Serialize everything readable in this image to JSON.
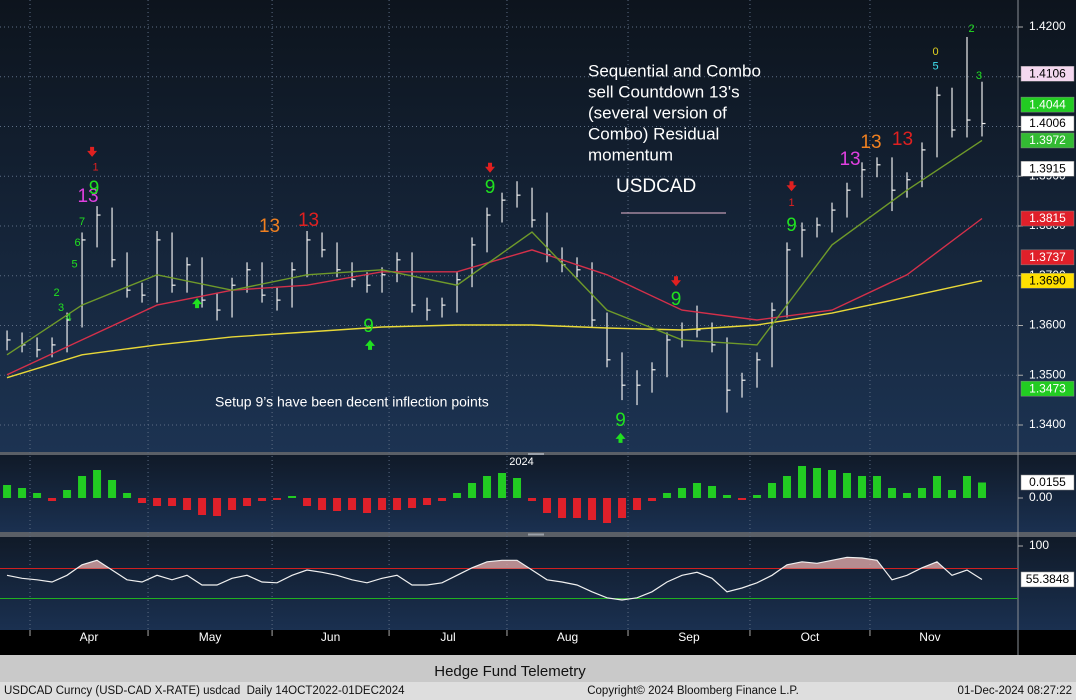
{
  "chart_data": [
    {
      "type": "ohlc",
      "high": [
        1.359,
        1.3586,
        1.3576,
        1.3576,
        1.3626,
        1.3787,
        1.384,
        1.3837,
        1.3747,
        1.3686,
        1.379,
        1.3787,
        1.3737,
        1.3737,
        1.3666,
        1.3696,
        1.3727,
        1.3727,
        1.3676,
        1.3727,
        1.379,
        1.3787,
        1.3767,
        1.3727,
        1.3707,
        1.3717,
        1.3747,
        1.3747,
        1.3656,
        1.3656,
        1.3707,
        1.3777,
        1.3837,
        1.3867,
        1.389,
        1.3877,
        1.3827,
        1.3757,
        1.3737,
        1.3727,
        1.3626,
        1.3546,
        1.351,
        1.3526,
        1.3586,
        1.3606,
        1.364,
        1.3606,
        1.3576,
        1.3505,
        1.3546,
        1.3646,
        1.3767,
        1.3807,
        1.3817,
        1.3847,
        1.3887,
        1.3928,
        1.3938,
        1.3938,
        1.3908,
        1.3968,
        1.408,
        1.4078,
        1.418,
        1.409
      ],
      "low": [
        1.355,
        1.3546,
        1.3536,
        1.3536,
        1.3546,
        1.3596,
        1.3757,
        1.3717,
        1.3656,
        1.3646,
        1.3646,
        1.3666,
        1.3666,
        1.3636,
        1.361,
        1.3616,
        1.3666,
        1.3646,
        1.363,
        1.3636,
        1.3697,
        1.3737,
        1.3697,
        1.3677,
        1.3666,
        1.3666,
        1.3687,
        1.3626,
        1.361,
        1.3616,
        1.3626,
        1.3677,
        1.3747,
        1.3807,
        1.3837,
        1.3797,
        1.3727,
        1.3707,
        1.3697,
        1.3596,
        1.3516,
        1.345,
        1.344,
        1.3465,
        1.3496,
        1.3556,
        1.3576,
        1.3546,
        1.3425,
        1.3455,
        1.3475,
        1.3516,
        1.3616,
        1.3737,
        1.3777,
        1.3787,
        1.3817,
        1.3857,
        1.3898,
        1.383,
        1.3857,
        1.3878,
        1.3938,
        1.3978,
        1.3978,
        1.398
      ],
      "close": [
        1.3571,
        1.3561,
        1.3551,
        1.3561,
        1.3611,
        1.3772,
        1.3822,
        1.3732,
        1.3671,
        1.3661,
        1.3772,
        1.3681,
        1.3722,
        1.3651,
        1.3631,
        1.3681,
        1.3712,
        1.3661,
        1.3651,
        1.3712,
        1.3772,
        1.3752,
        1.3712,
        1.3692,
        1.3681,
        1.3702,
        1.3732,
        1.3641,
        1.3631,
        1.3641,
        1.3692,
        1.3762,
        1.3822,
        1.3852,
        1.3862,
        1.3812,
        1.3742,
        1.3722,
        1.3712,
        1.3611,
        1.3531,
        1.348,
        1.348,
        1.3511,
        1.3571,
        1.3591,
        1.3591,
        1.3561,
        1.347,
        1.349,
        1.3531,
        1.3631,
        1.3752,
        1.3792,
        1.3802,
        1.3832,
        1.3872,
        1.3913,
        1.3923,
        1.3872,
        1.3893,
        1.3953,
        1.4063,
        1.3993,
        1.4013,
        1.4006
      ],
      "color": "#eeeeee",
      "xlim": [
        -0.47,
        67.4
      ],
      "xticks": [
        {
          "value": 1.53,
          "label": "Apr"
        },
        {
          "value": 9.4,
          "label": "May"
        },
        {
          "value": 17.67,
          "label": "Jun"
        },
        {
          "value": 25.47,
          "label": "Jul"
        },
        {
          "value": 33.33,
          "label": "Aug"
        },
        {
          "value": 41.4,
          "label": "Sep"
        },
        {
          "value": 49.53,
          "label": "Oct"
        },
        {
          "value": 57.53,
          "label": "Nov"
        }
      ],
      "year_tick": {
        "value": 34.3,
        "label": "2024"
      },
      "ylim": [
        1.33457,
        1.42543
      ],
      "yticks": [
        {
          "value": 1.34,
          "label": "1.3400"
        },
        {
          "value": 1.35,
          "label": "1.3500"
        },
        {
          "value": 1.36,
          "label": "1.3600"
        },
        {
          "value": 1.37,
          "label": "1.3700"
        },
        {
          "value": 1.38,
          "label": "1.3800"
        },
        {
          "value": 1.39,
          "label": "1.3900"
        },
        {
          "value": 1.4,
          "label": "1.4000"
        },
        {
          "value": 1.41,
          "label": "1.4100"
        },
        {
          "value": 1.42,
          "label": "1.4200"
        }
      ],
      "grid": true,
      "series": [
        {
          "color": "#e8d838",
          "x": [
            0,
            5,
            10,
            15,
            20,
            25,
            30,
            35,
            40,
            45,
            50,
            55,
            60,
            65
          ],
          "values": [
            1.3495,
            1.3541,
            1.3561,
            1.3577,
            1.3587,
            1.3597,
            1.3601,
            1.3601,
            1.3595,
            1.3591,
            1.3601,
            1.3625,
            1.3657,
            1.369
          ]
        },
        {
          "color": "#d4304a",
          "x": [
            0,
            5,
            10,
            15,
            20,
            25,
            30,
            35,
            40,
            45,
            50,
            55,
            60,
            65
          ],
          "values": [
            1.3501,
            1.3571,
            1.3641,
            1.3671,
            1.3681,
            1.3708,
            1.3708,
            1.3752,
            1.3702,
            1.3631,
            1.3611,
            1.3631,
            1.3702,
            1.3815
          ]
        },
        {
          "color": "#6f9a2a",
          "x": [
            0,
            5,
            10,
            15,
            20,
            25,
            30,
            35,
            40,
            45,
            50,
            55,
            60,
            65
          ],
          "values": [
            1.3541,
            1.3641,
            1.3702,
            1.3671,
            1.3702,
            1.3712,
            1.3681,
            1.3788,
            1.3631,
            1.3571,
            1.3561,
            1.3762,
            1.3872,
            1.3972
          ]
        }
      ],
      "flags": [
        {
          "value": 1.4106,
          "label": "1.4106",
          "color": "#f4d8f0"
        },
        {
          "value": 1.4044,
          "label": "1.4044",
          "color": "#22cc22"
        },
        {
          "value": 1.4006,
          "label": "1.4006",
          "color": "#ffffff"
        },
        {
          "value": 1.3972,
          "label": "1.3972",
          "color": "#33bb33"
        },
        {
          "value": 1.3915,
          "label": "1.3915",
          "color": "#ffffff"
        },
        {
          "value": 1.3815,
          "label": "1.3815",
          "color": "#e0202a"
        },
        {
          "value": 1.3737,
          "label": "1.3737",
          "color": "#e0202a"
        },
        {
          "value": 1.369,
          "label": "1.3690",
          "color": "#ffe000"
        },
        {
          "value": 1.3473,
          "label": "1.3473",
          "color": "#22cc22"
        }
      ],
      "annotations": [
        {
          "text": "2",
          "x": 3.3,
          "y": 1.3665,
          "color": "#20e020"
        },
        {
          "text": "3",
          "x": 3.6,
          "y": 1.3635,
          "color": "#20e020"
        },
        {
          "text": "4",
          "x": 4.1,
          "y": 1.3615,
          "color": "#20e020"
        },
        {
          "text": "5",
          "x": 4.5,
          "y": 1.3722,
          "color": "#20e020"
        },
        {
          "text": "6",
          "x": 4.7,
          "y": 1.3766,
          "color": "#20e020"
        },
        {
          "text": "7",
          "x": 5.0,
          "y": 1.3808,
          "color": "#20e020"
        },
        {
          "text": "13",
          "x": 5.4,
          "y": 1.3858,
          "color": "#e040e0"
        },
        {
          "text": "9",
          "x": 5.8,
          "y": 1.3874,
          "color": "#20e020"
        },
        {
          "text": "1",
          "x": 5.9,
          "y": 1.3917,
          "color": "#e02020"
        },
        {
          "text": "13",
          "x": 17.5,
          "y": 1.3798,
          "color": "#f08020"
        },
        {
          "text": "13",
          "x": 20.1,
          "y": 1.381,
          "color": "#e02020"
        },
        {
          "text": "9",
          "x": 24.1,
          "y": 1.3597,
          "color": "#20e020"
        },
        {
          "text": "9",
          "x": 32.2,
          "y": 1.3876,
          "color": "#20e020"
        },
        {
          "text": "9",
          "x": 40.9,
          "y": 1.3408,
          "color": "#20e020"
        },
        {
          "text": "9",
          "x": 44.6,
          "y": 1.3651,
          "color": "#20e020"
        },
        {
          "text": "9",
          "x": 52.3,
          "y": 1.38,
          "color": "#20e020"
        },
        {
          "text": "1",
          "x": 52.3,
          "y": 1.3846,
          "color": "#e02020"
        },
        {
          "text": "13",
          "x": 56.2,
          "y": 1.3933,
          "color": "#e040e0"
        },
        {
          "text": "13",
          "x": 57.6,
          "y": 1.3967,
          "color": "#f08020"
        },
        {
          "text": "13",
          "x": 59.7,
          "y": 1.3973,
          "color": "#e02020"
        },
        {
          "text": "0",
          "x": 61.9,
          "y": 1.415,
          "color": "#e0d020"
        },
        {
          "text": "5",
          "x": 61.9,
          "y": 1.412,
          "color": "#40e0f0"
        },
        {
          "text": "2",
          "x": 64.3,
          "y": 1.4196,
          "color": "#20e020"
        },
        {
          "text": "3",
          "x": 64.8,
          "y": 1.4101,
          "color": "#20e020"
        }
      ],
      "arrows": [
        {
          "x": 5.67,
          "y": 1.3949,
          "direction": "down",
          "color": "#e02020"
        },
        {
          "x": 32.2,
          "y": 1.3917,
          "direction": "down",
          "color": "#e02020"
        },
        {
          "x": 44.6,
          "y": 1.3689,
          "direction": "down",
          "color": "#e02020"
        },
        {
          "x": 52.3,
          "y": 1.388,
          "direction": "down",
          "color": "#e02020"
        },
        {
          "x": 12.67,
          "y": 1.3645,
          "direction": "up",
          "color": "#20e020"
        },
        {
          "x": 24.2,
          "y": 1.3561,
          "direction": "up",
          "color": "#20e020"
        },
        {
          "x": 40.9,
          "y": 1.3374,
          "direction": "up",
          "color": "#20e020"
        }
      ],
      "notes": [
        {
          "lines": [
            "Sequential and Combo",
            "sell Countdown 13's",
            "(several version of",
            "Combo) Residual",
            "momentum"
          ]
        },
        {
          "lines": [
            "USDCAD"
          ]
        },
        {
          "lines": [
            "Setup 9’s have been decent inflection points"
          ]
        }
      ]
    },
    {
      "type": "bar",
      "values": [
        0.013,
        0.01,
        0.005,
        -0.003,
        0.008,
        0.022,
        0.028,
        0.018,
        0.005,
        -0.005,
        -0.008,
        -0.008,
        -0.012,
        -0.017,
        -0.018,
        -0.012,
        -0.008,
        -0.003,
        -0.002,
        0.002,
        -0.008,
        -0.012,
        -0.013,
        -0.012,
        -0.015,
        -0.012,
        -0.012,
        -0.01,
        -0.007,
        -0.003,
        0.005,
        0.015,
        0.022,
        0.025,
        0.02,
        -0.003,
        -0.015,
        -0.02,
        -0.02,
        -0.022,
        -0.025,
        -0.02,
        -0.012,
        -0.003,
        0.005,
        0.01,
        0.015,
        0.012,
        0.003,
        -0.002,
        0.003,
        0.015,
        0.022,
        0.032,
        0.03,
        0.028,
        0.025,
        0.022,
        0.022,
        0.01,
        0.005,
        0.01,
        0.022,
        0.008,
        0.022,
        0.0155
      ],
      "color_positive": "#22cc22",
      "color_negative": "#e0202a",
      "ylim": [
        -0.034,
        0.043
      ],
      "yticks": [
        {
          "value": 0,
          "label": "0.00"
        }
      ],
      "grid": false,
      "flags": [
        {
          "value": 0.0155,
          "label": "0.0155",
          "color": "#ffffff"
        }
      ]
    },
    {
      "type": "line",
      "values": [
        61,
        57,
        55,
        52,
        61,
        75,
        81,
        68,
        55,
        52,
        61,
        55,
        61,
        48,
        48,
        57,
        61,
        52,
        51,
        61,
        68,
        65,
        61,
        55,
        51,
        57,
        61,
        48,
        48,
        51,
        61,
        71,
        79,
        81,
        81,
        68,
        55,
        52,
        48,
        39,
        31,
        28,
        31,
        39,
        52,
        61,
        65,
        57,
        39,
        44,
        51,
        61,
        75,
        79,
        77,
        81,
        85,
        84,
        81,
        55,
        61,
        71,
        79,
        61,
        68,
        55.3848
      ],
      "color": "#f0f0f0",
      "ylim": [
        -12,
        112
      ],
      "yticks": [
        100
      ],
      "grid": false,
      "reference_lines": [
        {
          "value": 70,
          "color": "#d02020"
        },
        {
          "value": 30,
          "color": "#20b020"
        }
      ],
      "flags": [
        {
          "value": 55.3848,
          "label": "55.3848",
          "color": "#ffffff"
        }
      ]
    }
  ],
  "footer": {
    "title": "Hedge Fund Telemetry",
    "security": "USDCAD Curncy (USD-CAD X-RATE) usdcad  Daily 14OCT2022-01DEC2024",
    "copyright": "Copyright© 2024 Bloomberg Finance L.P.",
    "timestamp": "01-Dec-2024 08:27:22"
  }
}
